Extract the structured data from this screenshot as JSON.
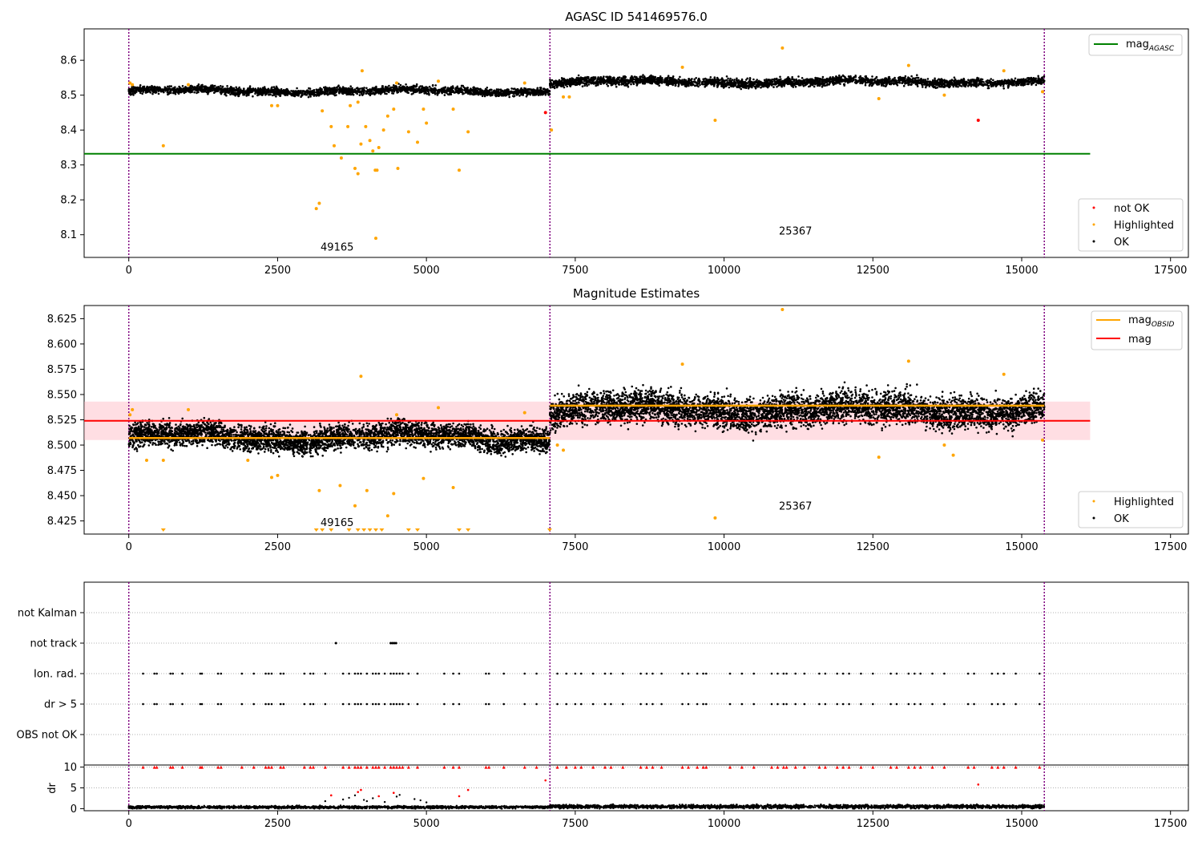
{
  "colors": {
    "ok": "#000000",
    "highlighted": "#ffa500",
    "not_ok": "#ff0000",
    "agasc_line": "#008000",
    "mag_line": "#ff0000",
    "obsid_line": "#ffa500",
    "band": "#ffb6c1",
    "boundary": "#800080",
    "grid": "#b0b0b0"
  },
  "x_axis": {
    "range": [
      -750,
      17800
    ],
    "ticks": [
      0,
      2500,
      5000,
      7500,
      10000,
      12500,
      15000,
      17500
    ],
    "tick_labels": [
      "0",
      "2500",
      "5000",
      "7500",
      "10000",
      "12500",
      "15000",
      "17500"
    ]
  },
  "chart_data": [
    {
      "type": "scatter",
      "title": "AGASC ID 541469576.0",
      "ylim": [
        8.035,
        8.69
      ],
      "yticks": [
        8.1,
        8.2,
        8.3,
        8.4,
        8.5,
        8.6
      ],
      "ytick_labels": [
        "8.1",
        "8.2",
        "8.3",
        "8.4",
        "8.5",
        "8.6"
      ],
      "legend_top": [
        {
          "name": "mag_AGASC",
          "main": "mag",
          "sub": "AGASC",
          "style": "line"
        }
      ],
      "legend_bottom": [
        {
          "name": "not OK",
          "style": "dot",
          "color_key": "not_ok"
        },
        {
          "name": "Highlighted",
          "style": "dot",
          "color_key": "highlighted"
        },
        {
          "name": "OK",
          "style": "dot",
          "color_key": "ok"
        }
      ],
      "mag_agasc": 8.332,
      "mag_agasc_xrange": [
        -750,
        16150
      ],
      "obs_boundaries": [
        0,
        7075,
        15380
      ],
      "obsids": [
        {
          "label": "49165",
          "x": 3500,
          "y": 8.055
        },
        {
          "label": "25367",
          "x": 11200,
          "y": 8.1
        }
      ],
      "ok_bands": [
        {
          "x0": 0,
          "x1": 7075,
          "center": 8.512,
          "spread": 0.009
        },
        {
          "x0": 7075,
          "x1": 15380,
          "center": 8.538,
          "spread": 0.01
        }
      ],
      "highlighted": [
        [
          20,
          8.535
        ],
        [
          60,
          8.53
        ],
        [
          580,
          8.355
        ],
        [
          3250,
          8.455
        ],
        [
          3400,
          8.41
        ],
        [
          3450,
          8.355
        ],
        [
          3570,
          8.32
        ],
        [
          3680,
          8.41
        ],
        [
          3800,
          8.29
        ],
        [
          3850,
          8.275
        ],
        [
          3900,
          8.36
        ],
        [
          3920,
          8.57
        ],
        [
          3980,
          8.41
        ],
        [
          4050,
          8.37
        ],
        [
          4100,
          8.34
        ],
        [
          4140,
          8.285
        ],
        [
          4170,
          8.285
        ],
        [
          4200,
          8.35
        ],
        [
          4280,
          8.4
        ],
        [
          4350,
          8.44
        ],
        [
          4450,
          8.46
        ],
        [
          4520,
          8.29
        ],
        [
          4700,
          8.395
        ],
        [
          4850,
          8.365
        ],
        [
          5000,
          8.42
        ],
        [
          5550,
          8.285
        ],
        [
          5700,
          8.395
        ],
        [
          3150,
          8.175
        ],
        [
          3200,
          8.19
        ],
        [
          4150,
          8.09
        ],
        [
          7100,
          8.4
        ],
        [
          9850,
          8.428
        ],
        [
          10980,
          8.635
        ],
        [
          3850,
          8.48
        ],
        [
          3720,
          8.47
        ],
        [
          2400,
          8.47
        ],
        [
          2500,
          8.47
        ],
        [
          4950,
          8.46
        ],
        [
          5450,
          8.46
        ],
        [
          1000,
          8.53
        ],
        [
          4500,
          8.535
        ],
        [
          5200,
          8.54
        ],
        [
          6650,
          8.535
        ],
        [
          7300,
          8.495
        ],
        [
          7400,
          8.495
        ],
        [
          9300,
          8.58
        ],
        [
          13100,
          8.585
        ],
        [
          12600,
          8.49
        ],
        [
          13700,
          8.5
        ],
        [
          14700,
          8.57
        ],
        [
          15350,
          8.51
        ]
      ],
      "not_ok": [
        [
          7000,
          8.45
        ],
        [
          14270,
          8.428
        ]
      ]
    },
    {
      "type": "scatter",
      "title": "Magnitude Estimates",
      "ylim": [
        8.412,
        8.638
      ],
      "yticks": [
        8.425,
        8.45,
        8.475,
        8.5,
        8.525,
        8.55,
        8.575,
        8.6,
        8.625
      ],
      "ytick_labels": [
        "8.425",
        "8.450",
        "8.475",
        "8.500",
        "8.525",
        "8.550",
        "8.575",
        "8.600",
        "8.625"
      ],
      "legend_top": [
        {
          "name": "mag_OBSID",
          "main": "mag",
          "sub": "OBSID",
          "style": "line",
          "color_key": "obsid_line"
        },
        {
          "name": "mag",
          "main": "mag",
          "sub": "",
          "style": "line",
          "color_key": "mag_line"
        }
      ],
      "legend_bottom": [
        {
          "name": "Highlighted",
          "style": "dot",
          "color_key": "highlighted"
        },
        {
          "name": "OK",
          "style": "dot",
          "color_key": "ok"
        }
      ],
      "mag": 8.524,
      "mag_band": [
        8.505,
        8.543
      ],
      "mag_xrange": [
        -750,
        16150
      ],
      "mag_obsid": [
        {
          "x0": 0,
          "x1": 7075,
          "value": 8.507
        },
        {
          "x0": 7075,
          "x1": 15380,
          "value": 8.539
        }
      ],
      "obs_boundaries": [
        0,
        7075,
        15380
      ],
      "obsids": [
        {
          "label": "49165",
          "x": 3500,
          "y": 8.42
        },
        {
          "label": "25367",
          "x": 11200,
          "y": 8.436
        }
      ],
      "ok_bands": [
        {
          "x0": 0,
          "x1": 7075,
          "center": 8.508,
          "spread": 0.01
        },
        {
          "x0": 7075,
          "x1": 15380,
          "center": 8.535,
          "spread": 0.013
        }
      ],
      "highlighted": [
        [
          20,
          8.53
        ],
        [
          60,
          8.535
        ],
        [
          580,
          8.485
        ],
        [
          1000,
          8.535
        ],
        [
          2400,
          8.468
        ],
        [
          2500,
          8.47
        ],
        [
          3200,
          8.455
        ],
        [
          3550,
          8.46
        ],
        [
          3900,
          8.568
        ],
        [
          3800,
          8.44
        ],
        [
          4000,
          8.455
        ],
        [
          4450,
          8.452
        ],
        [
          4350,
          8.43
        ],
        [
          4500,
          8.53
        ],
        [
          4950,
          8.467
        ],
        [
          5200,
          8.537
        ],
        [
          5450,
          8.458
        ],
        [
          6650,
          8.532
        ],
        [
          7200,
          8.5
        ],
        [
          7300,
          8.495
        ],
        [
          9300,
          8.58
        ],
        [
          9850,
          8.428
        ],
        [
          10980,
          8.634
        ],
        [
          12600,
          8.488
        ],
        [
          13100,
          8.583
        ],
        [
          13700,
          8.5
        ],
        [
          13850,
          8.49
        ],
        [
          14700,
          8.57
        ],
        [
          15350,
          8.505
        ],
        [
          300,
          8.485
        ],
        [
          2000,
          8.485
        ]
      ],
      "offscale_highlighted": [
        580,
        3150,
        3250,
        3400,
        3700,
        3850,
        3950,
        4050,
        4150,
        4250,
        4700,
        4850,
        5550,
        5700,
        7070
      ]
    },
    {
      "type": "scatter",
      "title": "",
      "flag_rows": [
        "not Kalman",
        "not track",
        "Ion. rad.",
        "dr > 5",
        "OBS not OK"
      ],
      "flag_times": [
        240,
        430,
        470,
        700,
        740,
        900,
        1200,
        1230,
        1500,
        1550,
        1900,
        2100,
        2300,
        2350,
        2400,
        2550,
        2600,
        2950,
        3050,
        3100,
        3300,
        3600,
        3700,
        3800,
        3850,
        3900,
        4000,
        4100,
        4150,
        4200,
        4300,
        4400,
        4450,
        4500,
        4550,
        4600,
        4700,
        4850,
        5300,
        5450,
        5550,
        6000,
        6050,
        6300,
        6650,
        6850,
        7200,
        7350,
        7500,
        7600,
        7800,
        8000,
        8100,
        8300,
        8600,
        8700,
        8800,
        8950,
        9300,
        9400,
        9550,
        9650,
        9700,
        10100,
        10300,
        10500,
        10800,
        10900,
        11000,
        11050,
        11200,
        11350,
        11600,
        11700,
        11900,
        12000,
        12100,
        12300,
        12500,
        12800,
        12900,
        13100,
        13200,
        13300,
        13500,
        13700,
        14100,
        14200,
        14500,
        14600,
        14700,
        14900,
        15300
      ],
      "not_track_times": [
        3480,
        4400,
        4430,
        4460,
        4490
      ],
      "obs_boundaries": [
        0,
        7075,
        15380
      ]
    },
    {
      "type": "scatter",
      "title": "",
      "ylabel": "dr",
      "ylim": [
        -0.5,
        10.5
      ],
      "yticks": [
        0,
        5,
        10
      ],
      "ytick_labels": [
        "0",
        "5",
        "10"
      ],
      "clipped_value": 10,
      "obs_boundaries": [
        0,
        7075,
        15380
      ],
      "not_ok_points": [
        [
          7000,
          6.8
        ],
        [
          14270,
          5.8
        ],
        [
          3400,
          3.2
        ],
        [
          3850,
          4
        ],
        [
          3900,
          4.5
        ],
        [
          4200,
          3
        ],
        [
          5550,
          3
        ],
        [
          5700,
          4.5
        ],
        [
          4450,
          3.8
        ]
      ],
      "scatter_points": [
        [
          3300,
          1.8
        ],
        [
          3600,
          2.2
        ],
        [
          3700,
          2.6
        ],
        [
          3800,
          3.2
        ],
        [
          3950,
          2.1
        ],
        [
          4000,
          1.8
        ],
        [
          4100,
          2.5
        ],
        [
          4300,
          1.6
        ],
        [
          4500,
          2.9
        ],
        [
          4550,
          3.3
        ],
        [
          4800,
          2.3
        ],
        [
          4900,
          2.0
        ],
        [
          5000,
          1.5
        ]
      ],
      "baseline_bands": [
        {
          "x0": 0,
          "x1": 7075,
          "center": 0.35,
          "spread": 0.25
        },
        {
          "x0": 7075,
          "x1": 15380,
          "center": 0.5,
          "spread": 0.35
        }
      ]
    }
  ]
}
